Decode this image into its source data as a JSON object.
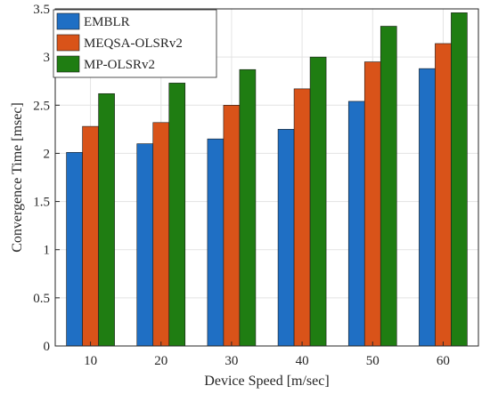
{
  "chart_data": {
    "type": "bar",
    "title": "",
    "xlabel": "Device Speed [m/sec]",
    "ylabel": "Convergence Time [msec]",
    "categories": [
      "10",
      "20",
      "30",
      "40",
      "50",
      "60"
    ],
    "ylim": [
      0,
      3.5
    ],
    "yticks": [
      "0",
      "0.5",
      "1",
      "1.5",
      "2",
      "2.5",
      "3",
      "3.5"
    ],
    "grid": true,
    "legend_position": "top-left",
    "series": [
      {
        "name": "EMBLR",
        "color": "#1f6fc4",
        "values": [
          2.01,
          2.1,
          2.15,
          2.25,
          2.54,
          2.88
        ]
      },
      {
        "name": "MEQSA-OLSRv2",
        "color": "#d95319",
        "values": [
          2.28,
          2.32,
          2.5,
          2.67,
          2.95,
          3.14
        ]
      },
      {
        "name": "MP-OLSRv2",
        "color": "#1f7d12",
        "values": [
          2.62,
          2.73,
          2.87,
          3.0,
          3.32,
          3.46
        ]
      }
    ]
  }
}
